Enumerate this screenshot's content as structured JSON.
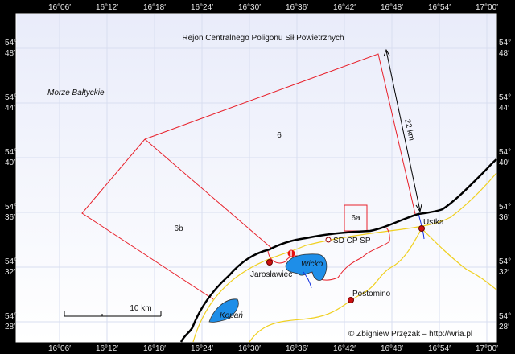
{
  "title": "Rejon Centralnego Poligonu Sił Powietrznych",
  "sea_label": "Morze Bałtyckie",
  "longitude_ticks": [
    "16°06′",
    "16°12′",
    "16°18′",
    "16°24′",
    "16°30′",
    "16°36′",
    "16°42′",
    "16°48′",
    "16°54′",
    "17°00′"
  ],
  "latitude_ticks": [
    [
      "54°",
      "48′"
    ],
    [
      "54°",
      "44′"
    ],
    [
      "54°",
      "40′"
    ],
    [
      "54°",
      "36′"
    ],
    [
      "54°",
      "32′"
    ],
    [
      "54°",
      "28′"
    ]
  ],
  "zones": {
    "z6": "6",
    "z6a": "6a",
    "z6b": "6b"
  },
  "distance_label": "22 km",
  "scale_label": "10 km",
  "places": {
    "ustka": "Ustka",
    "jaroslawiec": "Jarosławiec",
    "postomino": "Postomino",
    "sdcpsp": "SD CP SP"
  },
  "lakes": {
    "wicko": "Wicko",
    "kopan": "Kopań"
  },
  "copyright": "© Zbigniew Przęzak – http://wria.pl",
  "colors": {
    "zone_border": "#e8202a",
    "coast": "#000000",
    "road": "#f0d020",
    "lake": "#1e8ee8",
    "town": "#cc1010",
    "river": "#1030e0"
  }
}
